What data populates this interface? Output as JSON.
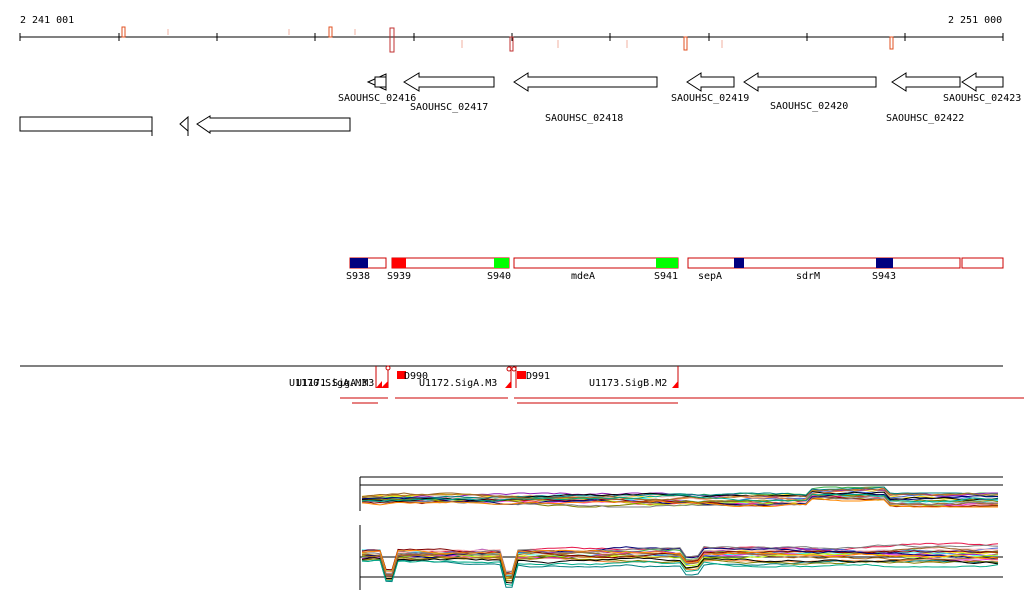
{
  "ruler": {
    "start_label": "2 241 001",
    "end_label": "2 251 000"
  },
  "genes": [
    {
      "label": "SAOUHSC_02416"
    },
    {
      "label": "SAOUHSC_02417"
    },
    {
      "label": "SAOUHSC_02418"
    },
    {
      "label": "SAOUHSC_02419"
    },
    {
      "label": "SAOUHSC_02420"
    },
    {
      "label": "SAOUHSC_02422"
    },
    {
      "label": "SAOUHSC_02423"
    }
  ],
  "segments": [
    {
      "label": "S938"
    },
    {
      "label": "S939"
    },
    {
      "label": "S940"
    },
    {
      "label": "mdeA"
    },
    {
      "label": "S941"
    },
    {
      "label": "sepA"
    },
    {
      "label": "sdrM"
    },
    {
      "label": "S943"
    }
  ],
  "segment_colors": {
    "outline": "#cc0000",
    "red": "#ff0000",
    "green": "#00ff00",
    "navy": "#000080"
  },
  "tss_markers": [
    {
      "label": "U1170.SigA.M3"
    },
    {
      "label": "U1171.SigA.M3"
    },
    {
      "label": "D990"
    },
    {
      "label": "U1172.SigA.M3"
    },
    {
      "label": "D991"
    },
    {
      "label": "U1173.SigB.M2"
    }
  ]
}
